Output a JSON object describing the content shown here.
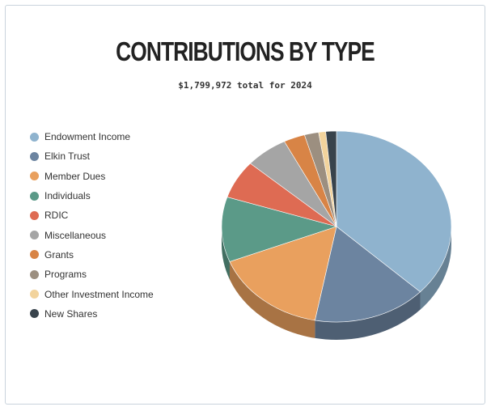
{
  "chart_data": {
    "type": "pie",
    "title": "CONTRIBUTIONS BY TYPE",
    "subtitle": "$1,799,972 total for 2024",
    "legend_position": "left",
    "series": [
      {
        "name": "Endowment Income",
        "value": 37.0,
        "color": "#8fb3ce"
      },
      {
        "name": "Elkin Trust",
        "value": 16.0,
        "color": "#6c84a0"
      },
      {
        "name": "Member Dues",
        "value": 16.0,
        "color": "#e9a05e"
      },
      {
        "name": "Individuals",
        "value": 11.0,
        "color": "#5b9a88"
      },
      {
        "name": "RDIC",
        "value": 6.5,
        "color": "#de6b53"
      },
      {
        "name": "Miscellaneous",
        "value": 6.0,
        "color": "#a5a5a5"
      },
      {
        "name": "Grants",
        "value": 3.0,
        "color": "#d88446"
      },
      {
        "name": "Programs",
        "value": 2.0,
        "color": "#9c8f80"
      },
      {
        "name": "Other Investment Income",
        "value": 1.0,
        "color": "#f2d39c"
      },
      {
        "name": "New Shares",
        "value": 1.5,
        "color": "#38434c"
      }
    ]
  }
}
